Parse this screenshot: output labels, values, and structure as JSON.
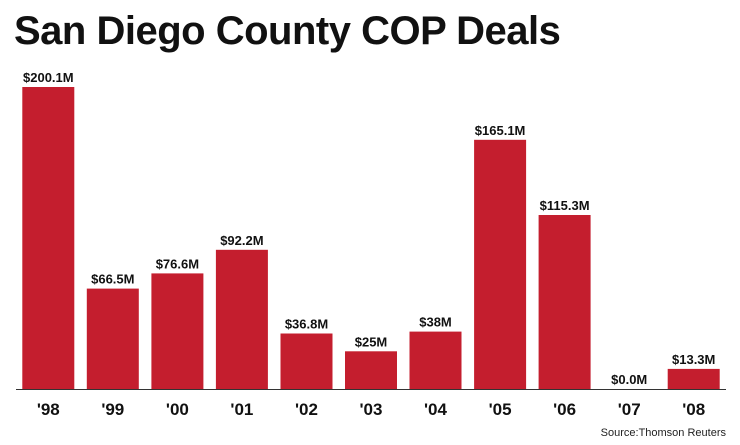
{
  "chart_data": {
    "type": "bar",
    "title": "San Diego County COP Deals",
    "source": "Source:Thomson Reuters",
    "categories": [
      "'98",
      "'99",
      "'00",
      "'01",
      "'02",
      "'03",
      "'04",
      "'05",
      "'06",
      "'07",
      "'08"
    ],
    "values": [
      200.1,
      66.5,
      76.6,
      92.2,
      36.8,
      25,
      38,
      165.1,
      115.3,
      0,
      13.3
    ],
    "value_labels": [
      "$200.1M",
      "$66.5M",
      "$76.6M",
      "$92.2M",
      "$36.8M",
      "$25M",
      "$38M",
      "$165.1M",
      "$115.3M",
      "$0.0M",
      "$13.3M"
    ],
    "bar_color": "#c41e2e",
    "axis_color": "#333333",
    "ylim": [
      0,
      200.1
    ],
    "grid": false,
    "legend": "none"
  }
}
